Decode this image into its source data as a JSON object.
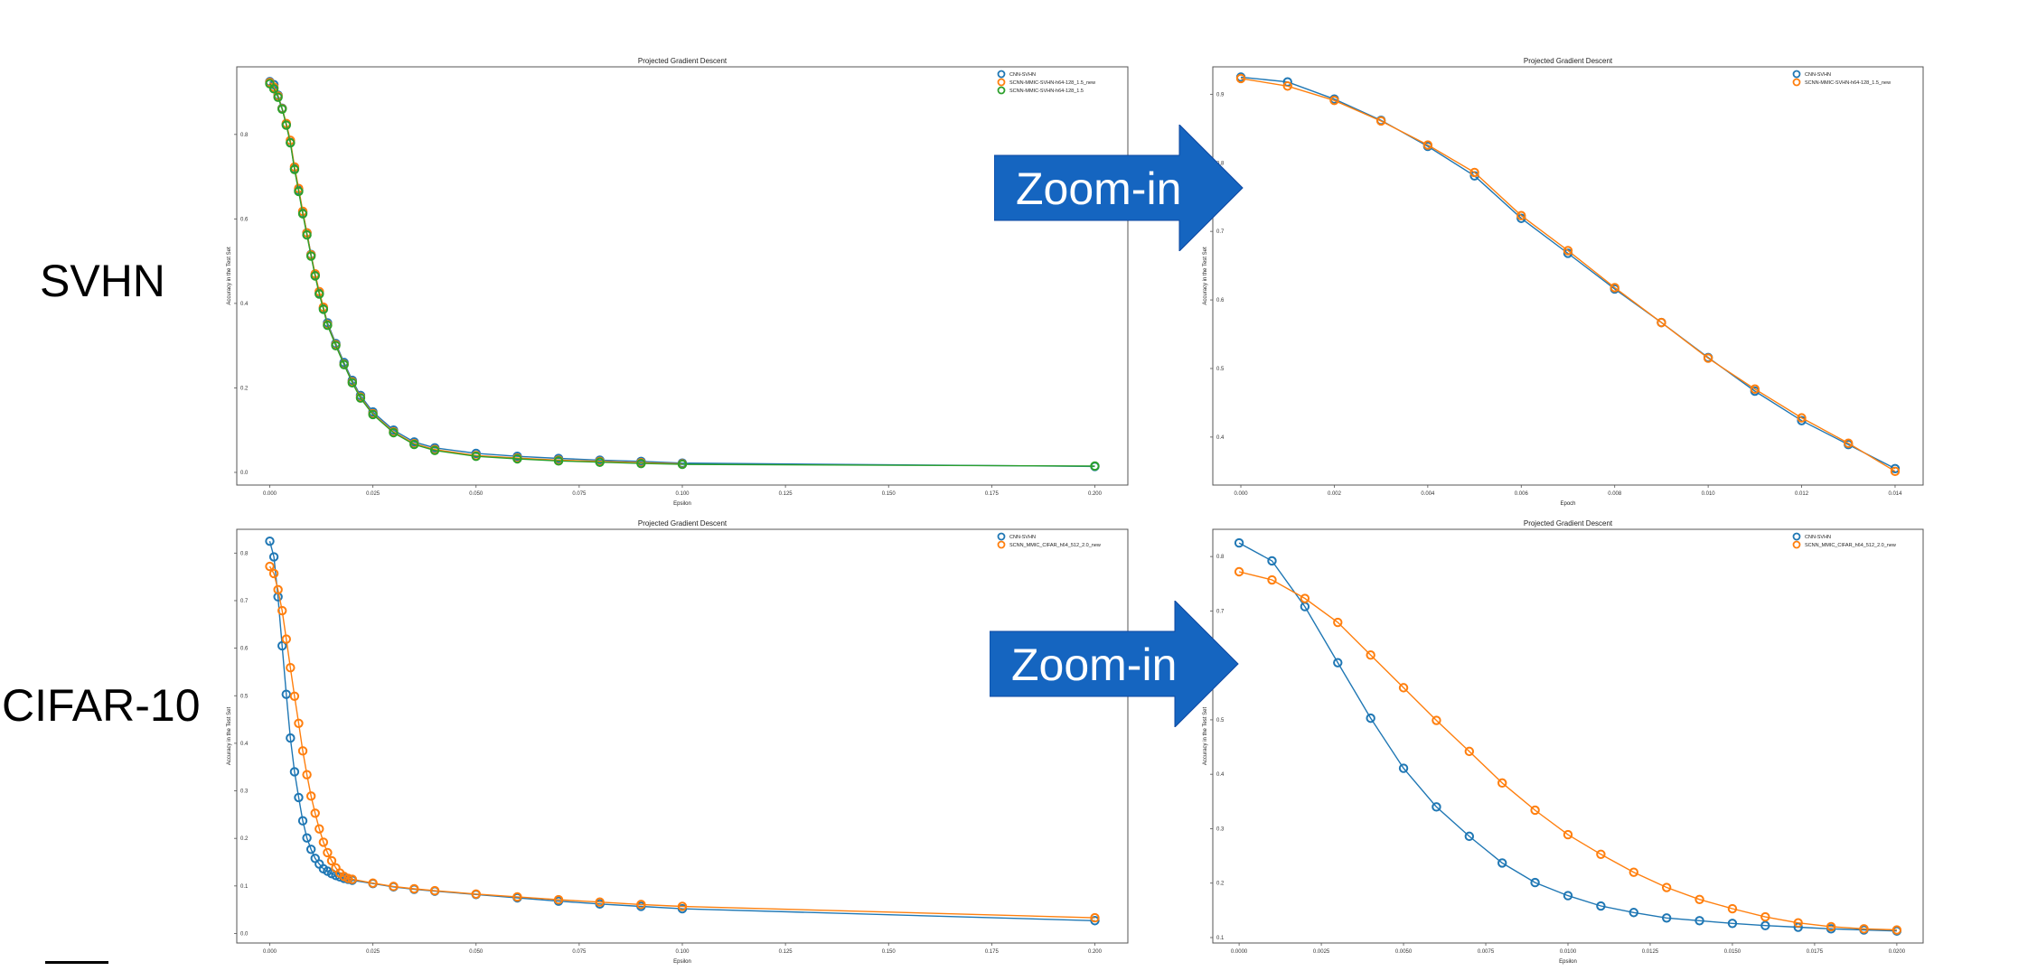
{
  "row_labels": {
    "svhn": "SVHN",
    "cifar": "CIFAR-10"
  },
  "arrows": [
    {
      "label": "Zoom-in",
      "color": "#1565c0"
    },
    {
      "label": "Zoom-in",
      "color": "#1565c0"
    }
  ],
  "colors": {
    "blue": "#1f77b4",
    "orange": "#ff7f0e",
    "green": "#2ca02c"
  },
  "chart_data": [
    {
      "id": "svhn-full",
      "type": "line",
      "title": "Projected Gradient Descent",
      "xlabel": "Epsilon",
      "ylabel": "Accuracy in the Test Set",
      "xlim": [
        -0.008,
        0.208
      ],
      "ylim": [
        -0.03,
        0.96
      ],
      "xticks": [
        "0.000",
        "0.025",
        "0.050",
        "0.075",
        "0.100",
        "0.125",
        "0.150",
        "0.175",
        "0.200"
      ],
      "yticks": [
        "0.0",
        "0.2",
        "0.4",
        "0.6",
        "0.8"
      ],
      "legend_position": "top-right",
      "series": [
        {
          "name": "CNN-SVHN",
          "color": "#1f77b4",
          "markers": true,
          "x": [
            0,
            0.001,
            0.002,
            0.003,
            0.004,
            0.005,
            0.006,
            0.007,
            0.008,
            0.009,
            0.01,
            0.011,
            0.012,
            0.013,
            0.014,
            0.016,
            0.018,
            0.02,
            0.022,
            0.025,
            0.03,
            0.035,
            0.04,
            0.05,
            0.06,
            0.07,
            0.08,
            0.09,
            0.1,
            0.2
          ],
          "y": [
            0.925,
            0.918,
            0.893,
            0.862,
            0.824,
            0.781,
            0.719,
            0.668,
            0.616,
            0.567,
            0.516,
            0.467,
            0.424,
            0.389,
            0.354,
            0.305,
            0.26,
            0.218,
            0.182,
            0.143,
            0.1,
            0.072,
            0.058,
            0.045,
            0.038,
            0.033,
            0.029,
            0.026,
            0.022,
            0.014
          ]
        },
        {
          "name": "SCNN-MMIC-SVHN-h64-128_1.5_new",
          "color": "#ff7f0e",
          "markers": true,
          "x": [
            0,
            0.001,
            0.002,
            0.003,
            0.004,
            0.005,
            0.006,
            0.007,
            0.008,
            0.009,
            0.01,
            0.011,
            0.012,
            0.013,
            0.014,
            0.016,
            0.018,
            0.02,
            0.022,
            0.025,
            0.03,
            0.035,
            0.04,
            0.05,
            0.06,
            0.07,
            0.08,
            0.09,
            0.1
          ],
          "y": [
            0.923,
            0.912,
            0.891,
            0.861,
            0.826,
            0.786,
            0.723,
            0.672,
            0.618,
            0.567,
            0.515,
            0.47,
            0.428,
            0.391,
            0.35,
            0.302,
            0.256,
            0.214,
            0.178,
            0.139,
            0.096,
            0.068,
            0.054,
            0.04,
            0.034,
            0.029,
            0.026,
            0.023,
            0.02
          ]
        },
        {
          "name": "SCNN-MMIC-SVHN-h64-128_1.5",
          "color": "#2ca02c",
          "markers": true,
          "x": [
            0,
            0.001,
            0.002,
            0.003,
            0.004,
            0.005,
            0.006,
            0.007,
            0.008,
            0.009,
            0.01,
            0.011,
            0.012,
            0.013,
            0.014,
            0.016,
            0.018,
            0.02,
            0.022,
            0.025,
            0.03,
            0.035,
            0.04,
            0.05,
            0.06,
            0.07,
            0.08,
            0.09,
            0.1,
            0.2
          ],
          "y": [
            0.92,
            0.908,
            0.888,
            0.86,
            0.822,
            0.78,
            0.717,
            0.665,
            0.612,
            0.562,
            0.512,
            0.465,
            0.422,
            0.386,
            0.348,
            0.3,
            0.255,
            0.212,
            0.176,
            0.137,
            0.094,
            0.066,
            0.052,
            0.038,
            0.032,
            0.027,
            0.024,
            0.021,
            0.019,
            0.015
          ]
        }
      ]
    },
    {
      "id": "svhn-zoom",
      "type": "line",
      "title": "Projected Gradient Descent",
      "xlabel": "Epoch",
      "ylabel": "Accuracy in the Test Set",
      "xlim": [
        -0.0006,
        0.0146
      ],
      "ylim": [
        0.33,
        0.94
      ],
      "xticks": [
        "0.000",
        "0.002",
        "0.004",
        "0.006",
        "0.008",
        "0.010",
        "0.012",
        "0.014"
      ],
      "yticks": [
        "0.4",
        "0.5",
        "0.6",
        "0.7",
        "0.8",
        "0.9"
      ],
      "legend_position": "top-right",
      "series": [
        {
          "name": "CNN-SVHN",
          "color": "#1f77b4",
          "markers": true,
          "x": [
            0,
            0.001,
            0.002,
            0.003,
            0.004,
            0.005,
            0.006,
            0.007,
            0.008,
            0.009,
            0.01,
            0.011,
            0.012,
            0.013,
            0.014
          ],
          "y": [
            0.925,
            0.918,
            0.893,
            0.862,
            0.824,
            0.781,
            0.719,
            0.668,
            0.616,
            0.567,
            0.516,
            0.467,
            0.424,
            0.389,
            0.354
          ]
        },
        {
          "name": "SCNN-MMIC-SVHN-h64-128_1.5_new",
          "color": "#ff7f0e",
          "markers": true,
          "x": [
            0,
            0.001,
            0.002,
            0.003,
            0.004,
            0.005,
            0.006,
            0.007,
            0.008,
            0.009,
            0.01,
            0.011,
            0.012,
            0.013,
            0.014
          ],
          "y": [
            0.923,
            0.912,
            0.891,
            0.861,
            0.826,
            0.786,
            0.723,
            0.672,
            0.618,
            0.567,
            0.515,
            0.47,
            0.428,
            0.391,
            0.35
          ]
        }
      ]
    },
    {
      "id": "cifar-full",
      "type": "line",
      "title": "Projected Gradient Descent",
      "xlabel": "Epsilon",
      "ylabel": "Accuracy in the Test Set",
      "xlim": [
        -0.008,
        0.208
      ],
      "ylim": [
        -0.02,
        0.85
      ],
      "xticks": [
        "0.000",
        "0.025",
        "0.050",
        "0.075",
        "0.100",
        "0.125",
        "0.150",
        "0.175",
        "0.200"
      ],
      "yticks": [
        "0.0",
        "0.1",
        "0.2",
        "0.3",
        "0.4",
        "0.5",
        "0.6",
        "0.7",
        "0.8"
      ],
      "legend_position": "top-right",
      "series": [
        {
          "name": "CNN-SVHN",
          "color": "#1f77b4",
          "markers": true,
          "x": [
            0,
            0.001,
            0.002,
            0.003,
            0.004,
            0.005,
            0.006,
            0.007,
            0.008,
            0.009,
            0.01,
            0.011,
            0.012,
            0.013,
            0.014,
            0.015,
            0.016,
            0.017,
            0.018,
            0.019,
            0.02,
            0.025,
            0.03,
            0.035,
            0.04,
            0.05,
            0.06,
            0.07,
            0.08,
            0.09,
            0.1,
            0.2
          ],
          "y": [
            0.825,
            0.792,
            0.708,
            0.605,
            0.503,
            0.411,
            0.34,
            0.286,
            0.237,
            0.201,
            0.177,
            0.158,
            0.146,
            0.136,
            0.131,
            0.126,
            0.122,
            0.119,
            0.116,
            0.114,
            0.112,
            0.105,
            0.098,
            0.093,
            0.089,
            0.082,
            0.075,
            0.068,
            0.062,
            0.057,
            0.052,
            0.027
          ]
        },
        {
          "name": "SCNN_MMIC_CIFAR_h64_512_2.0_new",
          "color": "#ff7f0e",
          "markers": true,
          "x": [
            0,
            0.001,
            0.002,
            0.003,
            0.004,
            0.005,
            0.006,
            0.007,
            0.008,
            0.009,
            0.01,
            0.011,
            0.012,
            0.013,
            0.014,
            0.015,
            0.016,
            0.017,
            0.018,
            0.019,
            0.02,
            0.025,
            0.03,
            0.035,
            0.04,
            0.05,
            0.06,
            0.07,
            0.08,
            0.09,
            0.1,
            0.2
          ],
          "y": [
            0.772,
            0.757,
            0.723,
            0.679,
            0.619,
            0.559,
            0.499,
            0.442,
            0.384,
            0.334,
            0.289,
            0.253,
            0.22,
            0.192,
            0.17,
            0.153,
            0.138,
            0.127,
            0.12,
            0.116,
            0.114,
            0.106,
            0.099,
            0.094,
            0.09,
            0.083,
            0.077,
            0.071,
            0.066,
            0.061,
            0.057,
            0.033
          ]
        }
      ]
    },
    {
      "id": "cifar-zoom",
      "type": "line",
      "title": "Projected Gradient Descent",
      "xlabel": "Epsilon",
      "ylabel": "Accuracy in the Test Set",
      "xlim": [
        -0.0008,
        0.0208
      ],
      "ylim": [
        0.09,
        0.85
      ],
      "xticks": [
        "0.0000",
        "0.0025",
        "0.0050",
        "0.0075",
        "0.0100",
        "0.0125",
        "0.0150",
        "0.0175",
        "0.0200"
      ],
      "yticks": [
        "0.1",
        "0.2",
        "0.3",
        "0.4",
        "0.5",
        "0.6",
        "0.7",
        "0.8"
      ],
      "legend_position": "top-right",
      "series": [
        {
          "name": "CNN-SVHN",
          "color": "#1f77b4",
          "markers": true,
          "x": [
            0,
            0.001,
            0.002,
            0.003,
            0.004,
            0.005,
            0.006,
            0.007,
            0.008,
            0.009,
            0.01,
            0.011,
            0.012,
            0.013,
            0.014,
            0.015,
            0.016,
            0.017,
            0.018,
            0.019,
            0.02
          ],
          "y": [
            0.825,
            0.792,
            0.708,
            0.605,
            0.503,
            0.411,
            0.34,
            0.286,
            0.237,
            0.201,
            0.177,
            0.158,
            0.146,
            0.136,
            0.131,
            0.126,
            0.122,
            0.119,
            0.116,
            0.114,
            0.112
          ]
        },
        {
          "name": "SCNN_MMIC_CIFAR_h64_512_2.0_new",
          "color": "#ff7f0e",
          "markers": true,
          "x": [
            0,
            0.001,
            0.002,
            0.003,
            0.004,
            0.005,
            0.006,
            0.007,
            0.008,
            0.009,
            0.01,
            0.011,
            0.012,
            0.013,
            0.014,
            0.015,
            0.016,
            0.017,
            0.018,
            0.019,
            0.02
          ],
          "y": [
            0.772,
            0.757,
            0.723,
            0.679,
            0.619,
            0.559,
            0.499,
            0.442,
            0.384,
            0.334,
            0.289,
            0.253,
            0.22,
            0.192,
            0.17,
            0.153,
            0.138,
            0.127,
            0.12,
            0.116,
            0.114
          ]
        }
      ]
    }
  ]
}
